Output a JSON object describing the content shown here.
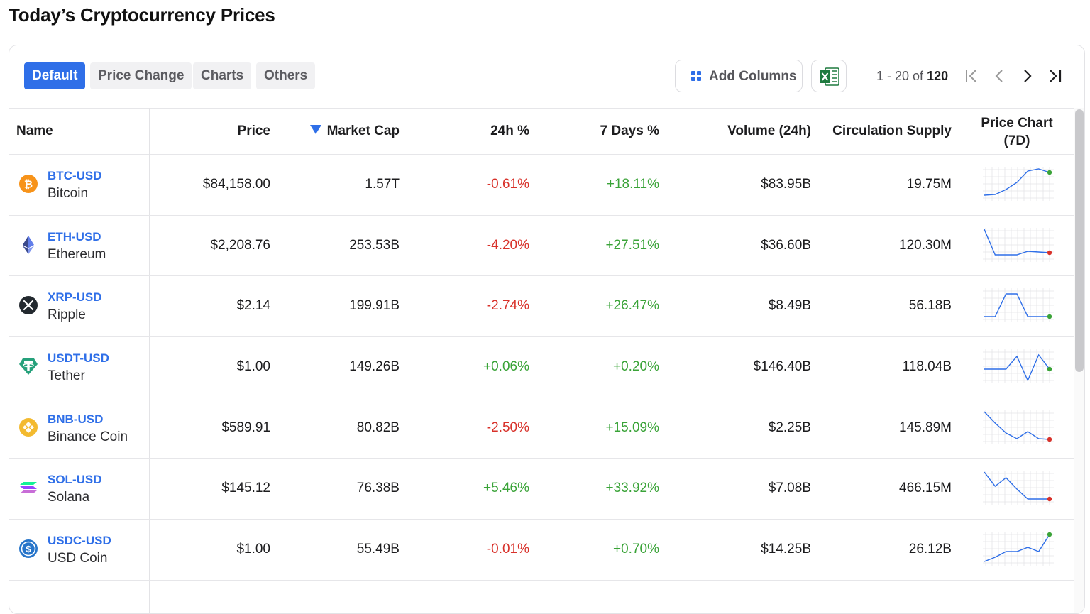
{
  "page_title": "Today’s Cryptocurrency Prices",
  "tabs": [
    {
      "label": "Default",
      "active": true
    },
    {
      "label": "Price Change",
      "active": false
    },
    {
      "label": "Charts",
      "active": false
    },
    {
      "label": "Others",
      "active": false
    }
  ],
  "toolbar": {
    "add_columns_label": "Add Columns",
    "excel_icon": "excel-icon"
  },
  "pagination": {
    "range": "1 - 20 of",
    "total": "120"
  },
  "columns": {
    "name": "Name",
    "price": "Price",
    "market_cap": "Market Cap",
    "change_24h": "24h %",
    "change_7d": "7 Days %",
    "volume": "Volume (24h)",
    "supply": "Circulation Supply",
    "chart_line1": "Price Chart",
    "chart_line2": "(7D)"
  },
  "colors": {
    "accent": "#2f6fe8",
    "positive": "#3aa338",
    "negative": "#d8312a"
  },
  "rows": [
    {
      "symbol": "BTC-USD",
      "name": "Bitcoin",
      "price": "$84,158.00",
      "market_cap": "1.57T",
      "change_24h": "-0.61%",
      "change_7d": "+18.11%",
      "volume": "$83.95B",
      "supply": "19.75M",
      "icon": "bitcoin-icon",
      "spark": [
        10,
        11,
        18,
        28,
        44,
        47,
        42
      ],
      "trend": "up"
    },
    {
      "symbol": "ETH-USD",
      "name": "Ethereum",
      "price": "$2,208.76",
      "market_cap": "253.53B",
      "change_24h": "-4.20%",
      "change_7d": "+27.51%",
      "volume": "$36.60B",
      "supply": "120.30M",
      "icon": "ethereum-icon",
      "spark": [
        48,
        12,
        12,
        12,
        17,
        16,
        15
      ],
      "trend": "down"
    },
    {
      "symbol": "XRP-USD",
      "name": "Ripple",
      "price": "$2.14",
      "market_cap": "199.91B",
      "change_24h": "-2.74%",
      "change_7d": "+26.47%",
      "volume": "$8.49B",
      "supply": "56.18B",
      "icon": "xrp-icon",
      "spark": [
        10,
        10,
        42,
        42,
        10,
        10,
        10
      ],
      "trend": "up"
    },
    {
      "symbol": "USDT-USD",
      "name": "Tether",
      "price": "$1.00",
      "market_cap": "149.26B",
      "change_24h": "+0.06%",
      "change_7d": "+0.20%",
      "volume": "$146.40B",
      "supply": "118.04B",
      "icon": "tether-icon",
      "spark": [
        22,
        22,
        22,
        40,
        6,
        42,
        22
      ],
      "trend": "up"
    },
    {
      "symbol": "BNB-USD",
      "name": "Binance Coin",
      "price": "$589.91",
      "market_cap": "80.82B",
      "change_24h": "-2.50%",
      "change_7d": "+15.09%",
      "volume": "$2.25B",
      "supply": "145.89M",
      "icon": "binance-coin-icon",
      "spark": [
        48,
        32,
        18,
        10,
        20,
        10,
        9
      ],
      "trend": "down"
    },
    {
      "symbol": "SOL-USD",
      "name": "Solana",
      "price": "$145.12",
      "market_cap": "76.38B",
      "change_24h": "+5.46%",
      "change_7d": "+33.92%",
      "volume": "$7.08B",
      "supply": "466.15M",
      "icon": "solana-icon",
      "spark": [
        48,
        28,
        40,
        24,
        10,
        10,
        10
      ],
      "trend": "down"
    },
    {
      "symbol": "USDC-USD",
      "name": "USD Coin",
      "price": "$1.00",
      "market_cap": "55.49B",
      "change_24h": "-0.01%",
      "change_7d": "+0.70%",
      "volume": "$14.25B",
      "supply": "26.12B",
      "icon": "usd-coin-icon",
      "spark": [
        8,
        14,
        22,
        22,
        28,
        22,
        46
      ],
      "trend": "up"
    }
  ]
}
